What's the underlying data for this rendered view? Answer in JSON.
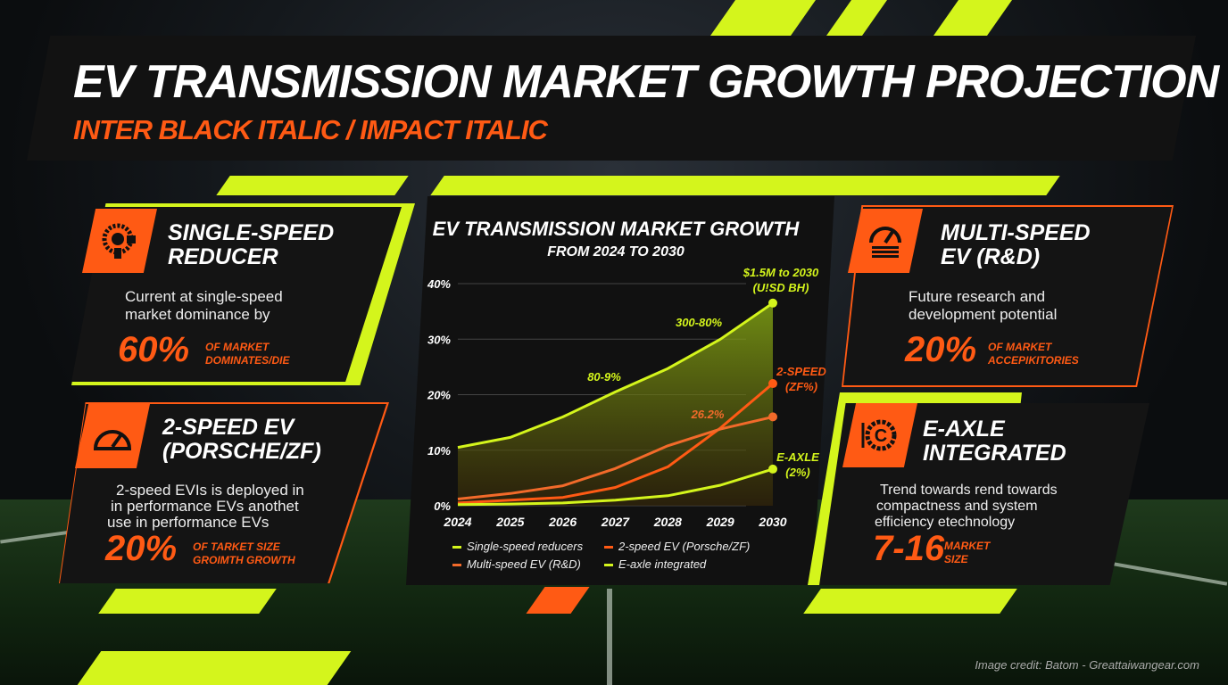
{
  "header": {
    "title": "EV TRANSMISSION MARKET GROWTH PROJECTION",
    "subtitle": "INTER BLACK ITALIC / IMPACT ITALIC"
  },
  "colors": {
    "lime": "#d4f51c",
    "orange": "#ff5a14",
    "dark": "#141414"
  },
  "cards": [
    {
      "icon": "gear-reducer-icon",
      "title1": "SINGLE-SPEED",
      "title2": "REDUCER",
      "desc1": "Current at single-speed",
      "desc2": "market dominance by",
      "desc3": "",
      "stat": "60%",
      "note1": "OF MARKET",
      "note2": "DOMINATES/DIE"
    },
    {
      "icon": "speedometer-icon",
      "title1": "2-SPEED EV",
      "title2": "(PORSCHE/ZF)",
      "desc1": "2-speed EVIs is deployed in",
      "desc2": "in performance EVs anothet",
      "desc3": "use in performance EVs",
      "stat": "20%",
      "note1": "OF TARKET SIZE",
      "note2": "GROIMTH GROWTH"
    },
    {
      "icon": "gauge-stack-icon",
      "title1": "MULTI-SPEED",
      "title2": "EV (R&D)",
      "desc1": "Future research and",
      "desc2": "development potential",
      "desc3": "",
      "stat": "20%",
      "note1": "OF MARKET",
      "note2": "ACCEPIKITORIES"
    },
    {
      "icon": "e-axle-gear-icon",
      "title1": "E-AXLE",
      "title2": "INTEGRATED",
      "desc1": "Trend towards rend towards",
      "desc2": "compactness and system",
      "desc3": "efficiency etechnology",
      "stat": "7-16",
      "note1": "MARKET",
      "note2": "SIZE"
    }
  ],
  "chart_data": {
    "type": "line",
    "title": "EV TRANSMISSION MARKET GROWTH",
    "subtitle": "FROM 2024 TO 2030",
    "x": [
      2024,
      2025,
      2026,
      2027,
      2028,
      2029,
      2030
    ],
    "x_tick_labels": [
      "2024",
      "2025",
      "2026",
      "2027",
      "2028",
      "2029",
      "2030"
    ],
    "y_tick_labels": [
      "0%",
      "10%",
      "20%",
      "30%",
      "40%"
    ],
    "y_ticks": [
      0,
      10,
      20,
      30,
      40
    ],
    "ylim": [
      0,
      40
    ],
    "grid": true,
    "legend_position": "bottom",
    "series": [
      {
        "name": "Single-speed reducers",
        "color": "#d4f51c",
        "filled": true,
        "values": [
          10.5,
          12.3,
          16,
          20.5,
          24.7,
          30,
          36.5
        ]
      },
      {
        "name": "2-speed EV (Porsche/ZF)",
        "color": "#ff5a14",
        "values": [
          0.5,
          1,
          1.5,
          3.3,
          7,
          14,
          22
        ]
      },
      {
        "name": "Multi-speed EV (R&D)",
        "color": "#f26a2a",
        "values": [
          1.2,
          2.2,
          3.6,
          6.7,
          10.8,
          13.8,
          16
        ]
      },
      {
        "name": "E-axle integrated",
        "color": "#d4f51c",
        "values": [
          0.2,
          0.3,
          0.5,
          1,
          1.8,
          3.7,
          6.6
        ]
      }
    ],
    "annotations": {
      "top1": "$1.5M to 2030",
      "top2": "(U!SD BH)",
      "a1": "300-80%",
      "a2": "80-9%",
      "a3": "26.2%",
      "speed1": "2-SPEED",
      "speed2": "(ZF%)",
      "axle1": "E-AXLE",
      "axle2": "(2%)"
    }
  },
  "footer": {
    "credit": "Image credit: Batom - Greattaiwangear.com"
  }
}
